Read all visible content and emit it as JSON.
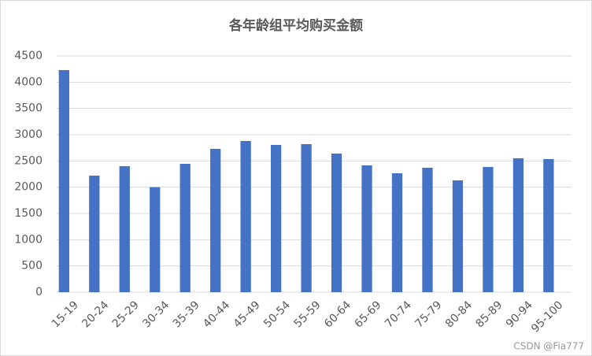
{
  "chart_data": {
    "type": "bar",
    "title": "各年龄组平均购买金额",
    "categories": [
      "15-19",
      "20-24",
      "25-29",
      "30-34",
      "35-39",
      "40-44",
      "45-49",
      "50-54",
      "55-59",
      "60-64",
      "65-69",
      "70-74",
      "75-79",
      "80-84",
      "85-89",
      "90-94",
      "95-100"
    ],
    "values": [
      4230,
      2220,
      2400,
      2000,
      2445,
      2730,
      2880,
      2805,
      2820,
      2640,
      2415,
      2265,
      2370,
      2130,
      2385,
      2550,
      2535
    ],
    "color": "#4472c4",
    "ylim": [
      0,
      4500
    ],
    "yticks": [
      0,
      500,
      1000,
      1500,
      2000,
      2500,
      3000,
      3500,
      4000,
      4500
    ],
    "grid": true
  },
  "watermark": "CSDN @Fia777"
}
